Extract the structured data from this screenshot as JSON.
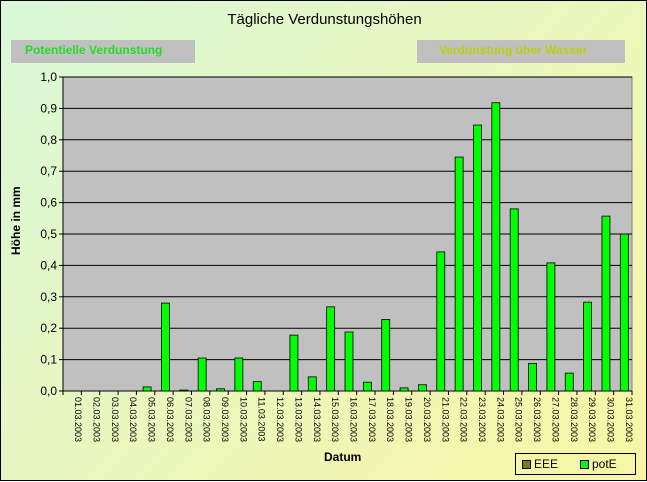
{
  "title": "Tägliche Verdunstungshöhen",
  "buttons": {
    "potentielle": "Potentielle Verdunstung",
    "wasser": "Verdunstung über Wasser"
  },
  "chart_data": {
    "type": "bar",
    "xlabel": "Datum",
    "ylabel": "Höhe in mm",
    "ylim": [
      0,
      1.0
    ],
    "yticks": [
      "0,0",
      "0,1",
      "0,2",
      "0,3",
      "0,4",
      "0,5",
      "0,6",
      "0,7",
      "0,8",
      "0,9",
      "1,0"
    ],
    "grid": true,
    "legend_position": "bottom-right",
    "categories": [
      "01.03.2003",
      "02.03.2003",
      "03.03.2003",
      "04.03.2003",
      "05.03.2003",
      "06.03.2003",
      "07.03.2003",
      "08.03.2003",
      "09.03.2003",
      "10.03.2003",
      "11.03.2003",
      "12.03.2003",
      "13.03.2003",
      "14.03.2003",
      "15.03.2003",
      "16.03.2003",
      "17.03.2003",
      "18.03.2003",
      "19.03.2003",
      "20.03.2003",
      "21.03.2003",
      "22.03.2003",
      "23.03.2003",
      "24.03.2003",
      "25.03.2003",
      "26.03.2003",
      "27.03.2003",
      "28.03.2003",
      "29.03.2003",
      "30.03.2003",
      "31.03.2003"
    ],
    "series": [
      {
        "name": "EEE",
        "color": "#808000",
        "values": [
          0,
          0,
          0,
          0,
          0,
          0,
          0,
          0,
          0,
          0,
          0,
          0,
          0,
          0,
          0,
          0,
          0,
          0,
          0,
          0,
          0,
          0,
          0,
          0,
          0,
          0,
          0,
          0,
          0,
          0,
          0
        ]
      },
      {
        "name": "potE",
        "color": "#00ff00",
        "values": [
          0,
          0,
          0,
          0,
          0.013,
          0.28,
          0.003,
          0.105,
          0.007,
          0.105,
          0.03,
          0,
          0.178,
          0.045,
          0.268,
          0.188,
          0.028,
          0.228,
          0.01,
          0.02,
          0.443,
          0.745,
          0.847,
          0.918,
          0.58,
          0.088,
          0.408,
          0.057,
          0.283,
          0.557,
          0.5
        ]
      }
    ]
  }
}
